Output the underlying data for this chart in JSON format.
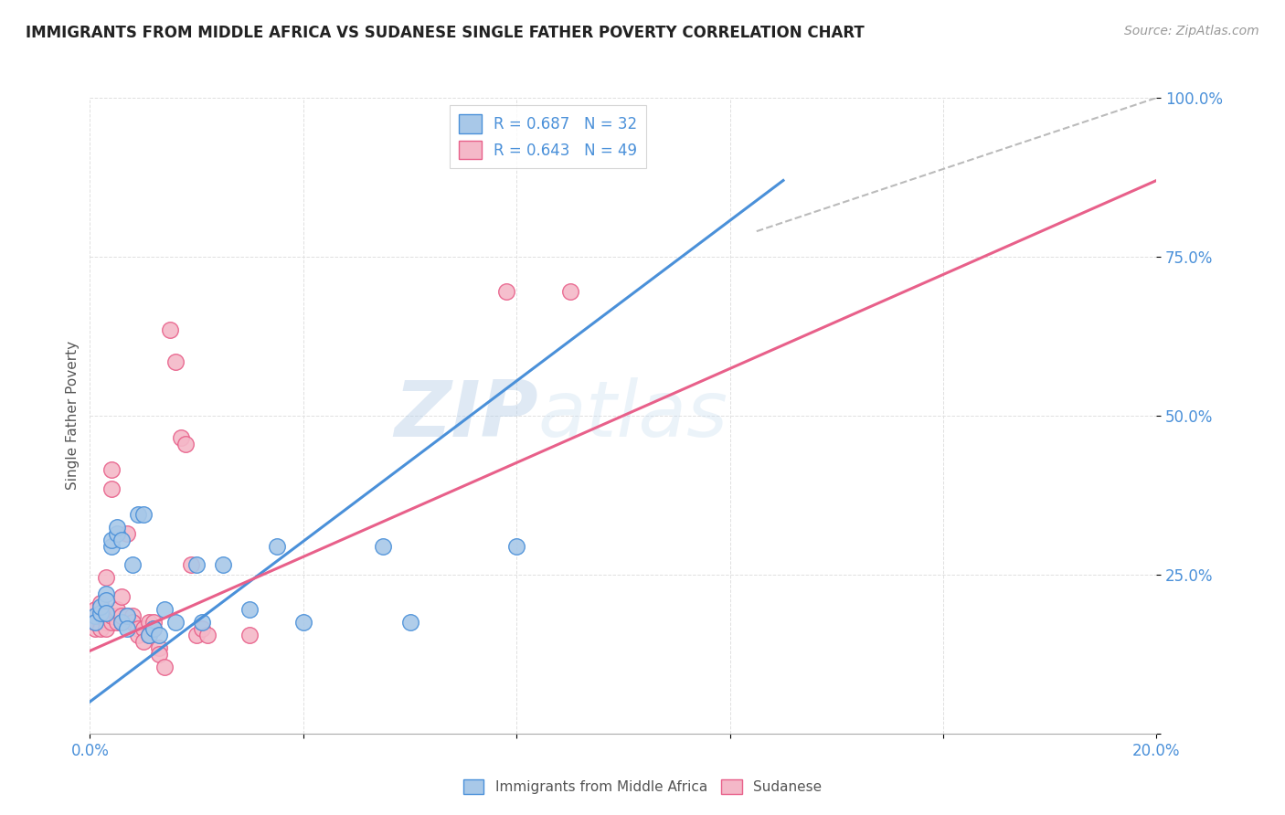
{
  "title": "IMMIGRANTS FROM MIDDLE AFRICA VS SUDANESE SINGLE FATHER POVERTY CORRELATION CHART",
  "source": "Source: ZipAtlas.com",
  "ylabel_label": "Single Father Poverty",
  "x_min": 0.0,
  "x_max": 0.2,
  "y_min": 0.0,
  "y_max": 1.0,
  "x_ticks": [
    0.0,
    0.04,
    0.08,
    0.12,
    0.16,
    0.2
  ],
  "x_tick_labels": [
    "0.0%",
    "",
    "",
    "",
    "",
    "20.0%"
  ],
  "y_ticks": [
    0.0,
    0.25,
    0.5,
    0.75,
    1.0
  ],
  "y_tick_labels": [
    "",
    "25.0%",
    "50.0%",
    "75.0%",
    "100.0%"
  ],
  "blue_color": "#a8c8e8",
  "pink_color": "#f4b8c8",
  "blue_line_color": "#4a90d9",
  "pink_line_color": "#e8608a",
  "dashed_line_color": "#bbbbbb",
  "legend_label_blue": "Immigrants from Middle Africa",
  "legend_label_pink": "Sudanese",
  "watermark_zip": "ZIP",
  "watermark_atlas": "atlas",
  "title_color": "#222222",
  "axis_tick_color": "#4a90d9",
  "blue_scatter": [
    [
      0.001,
      0.185
    ],
    [
      0.001,
      0.175
    ],
    [
      0.002,
      0.19
    ],
    [
      0.002,
      0.2
    ],
    [
      0.003,
      0.22
    ],
    [
      0.003,
      0.21
    ],
    [
      0.003,
      0.19
    ],
    [
      0.004,
      0.295
    ],
    [
      0.004,
      0.305
    ],
    [
      0.005,
      0.315
    ],
    [
      0.005,
      0.325
    ],
    [
      0.006,
      0.305
    ],
    [
      0.006,
      0.175
    ],
    [
      0.007,
      0.185
    ],
    [
      0.007,
      0.165
    ],
    [
      0.008,
      0.265
    ],
    [
      0.009,
      0.345
    ],
    [
      0.01,
      0.345
    ],
    [
      0.011,
      0.155
    ],
    [
      0.012,
      0.165
    ],
    [
      0.013,
      0.155
    ],
    [
      0.014,
      0.195
    ],
    [
      0.016,
      0.175
    ],
    [
      0.02,
      0.265
    ],
    [
      0.021,
      0.175
    ],
    [
      0.025,
      0.265
    ],
    [
      0.03,
      0.195
    ],
    [
      0.035,
      0.295
    ],
    [
      0.04,
      0.175
    ],
    [
      0.055,
      0.295
    ],
    [
      0.06,
      0.175
    ],
    [
      0.08,
      0.295
    ]
  ],
  "pink_scatter": [
    [
      0.001,
      0.185
    ],
    [
      0.001,
      0.195
    ],
    [
      0.001,
      0.165
    ],
    [
      0.001,
      0.175
    ],
    [
      0.002,
      0.185
    ],
    [
      0.002,
      0.195
    ],
    [
      0.002,
      0.175
    ],
    [
      0.002,
      0.165
    ],
    [
      0.002,
      0.205
    ],
    [
      0.003,
      0.185
    ],
    [
      0.003,
      0.245
    ],
    [
      0.003,
      0.175
    ],
    [
      0.003,
      0.165
    ],
    [
      0.004,
      0.175
    ],
    [
      0.004,
      0.185
    ],
    [
      0.004,
      0.385
    ],
    [
      0.004,
      0.415
    ],
    [
      0.005,
      0.185
    ],
    [
      0.005,
      0.175
    ],
    [
      0.005,
      0.195
    ],
    [
      0.006,
      0.175
    ],
    [
      0.006,
      0.185
    ],
    [
      0.006,
      0.215
    ],
    [
      0.007,
      0.185
    ],
    [
      0.007,
      0.315
    ],
    [
      0.008,
      0.185
    ],
    [
      0.008,
      0.175
    ],
    [
      0.009,
      0.165
    ],
    [
      0.009,
      0.155
    ],
    [
      0.01,
      0.165
    ],
    [
      0.01,
      0.145
    ],
    [
      0.011,
      0.175
    ],
    [
      0.011,
      0.155
    ],
    [
      0.012,
      0.175
    ],
    [
      0.012,
      0.165
    ],
    [
      0.013,
      0.135
    ],
    [
      0.013,
      0.125
    ],
    [
      0.014,
      0.105
    ],
    [
      0.015,
      0.635
    ],
    [
      0.016,
      0.585
    ],
    [
      0.017,
      0.465
    ],
    [
      0.018,
      0.455
    ],
    [
      0.019,
      0.265
    ],
    [
      0.02,
      0.155
    ],
    [
      0.021,
      0.165
    ],
    [
      0.022,
      0.155
    ],
    [
      0.03,
      0.155
    ],
    [
      0.078,
      0.695
    ],
    [
      0.09,
      0.695
    ]
  ],
  "blue_line": [
    [
      0.0,
      0.05
    ],
    [
      0.13,
      0.87
    ]
  ],
  "pink_line": [
    [
      0.0,
      0.13
    ],
    [
      0.2,
      0.87
    ]
  ],
  "diag_line": [
    [
      0.125,
      0.79
    ],
    [
      0.2,
      1.0
    ]
  ]
}
